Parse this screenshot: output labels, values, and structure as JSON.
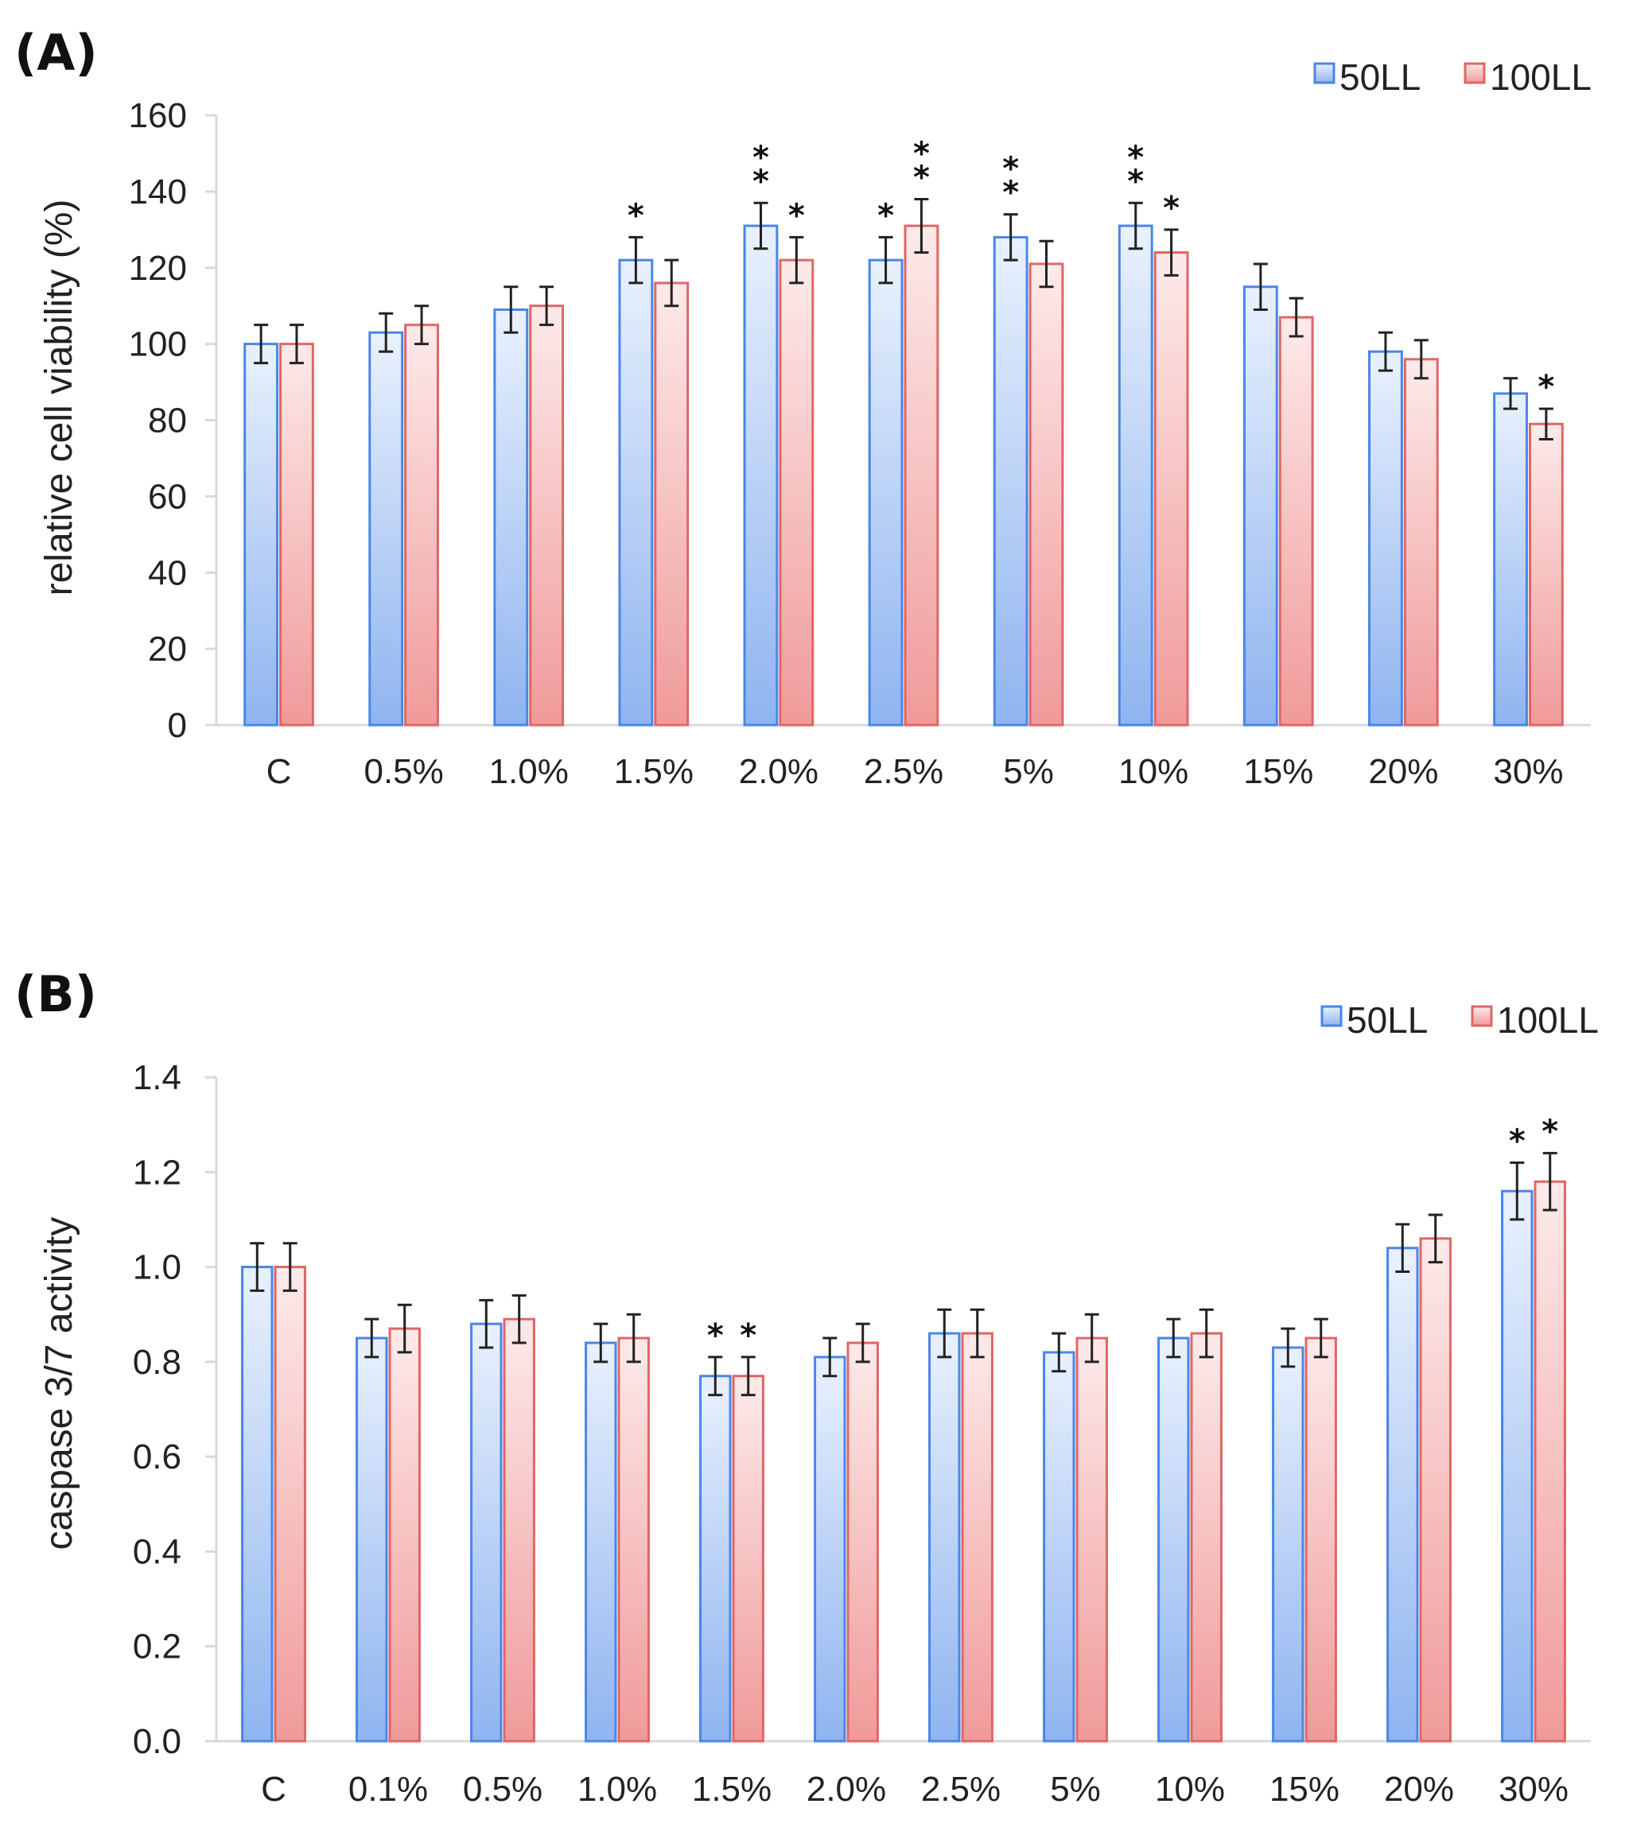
{
  "colors": {
    "series1": "#4a86e8",
    "series2": "#e06666"
  },
  "chart_data": [
    {
      "type": "bar",
      "panel_label": "(A)",
      "ylabel": "relative cell viability (%)",
      "ylim": [
        0,
        160
      ],
      "yticks": [
        0,
        20,
        40,
        60,
        80,
        100,
        120,
        140,
        160
      ],
      "categories": [
        "C",
        "0.5%",
        "1.0%",
        "1.5%",
        "2.0%",
        "2.5%",
        "5%",
        "10%",
        "15%",
        "20%",
        "30%"
      ],
      "legend": "top-right",
      "series": [
        {
          "name": "50LL",
          "values": [
            100,
            103,
            109,
            122,
            131,
            122,
            128,
            131,
            115,
            98,
            87
          ],
          "errors": [
            5,
            5,
            6,
            6,
            6,
            6,
            6,
            6,
            6,
            5,
            4
          ],
          "sig": [
            "",
            "",
            "",
            "*",
            "* *",
            "*",
            "* *",
            "* *",
            "",
            "",
            ""
          ]
        },
        {
          "name": "100LL",
          "values": [
            100,
            105,
            110,
            116,
            122,
            131,
            121,
            124,
            107,
            96,
            79
          ],
          "errors": [
            5,
            5,
            5,
            6,
            6,
            7,
            6,
            6,
            5,
            5,
            4
          ],
          "sig": [
            "",
            "",
            "",
            "",
            "*",
            "* *",
            "",
            "*",
            "",
            "",
            "*"
          ]
        }
      ]
    },
    {
      "type": "bar",
      "panel_label": "(B)",
      "ylabel": "caspase 3/7 activity",
      "ylim": [
        0,
        1.4
      ],
      "yticks": [
        "0.0",
        "0.2",
        "0.4",
        "0.6",
        "0.8",
        "1.0",
        "1.2",
        "1.4"
      ],
      "categories": [
        "C",
        "0.1%",
        "0.5%",
        "1.0%",
        "1.5%",
        "2.0%",
        "2.5%",
        "5%",
        "10%",
        "15%",
        "20%",
        "30%"
      ],
      "legend": "top-right",
      "series": [
        {
          "name": "50LL",
          "values": [
            1.0,
            0.85,
            0.88,
            0.84,
            0.77,
            0.81,
            0.86,
            0.82,
            0.85,
            0.83,
            1.04,
            1.16
          ],
          "errors": [
            0.05,
            0.04,
            0.05,
            0.04,
            0.04,
            0.04,
            0.05,
            0.04,
            0.04,
            0.04,
            0.05,
            0.06
          ],
          "sig": [
            "",
            "",
            "",
            "",
            "*",
            "",
            "",
            "",
            "",
            "",
            "",
            "*"
          ]
        },
        {
          "name": "100LL",
          "values": [
            1.0,
            0.87,
            0.89,
            0.85,
            0.77,
            0.84,
            0.86,
            0.85,
            0.86,
            0.85,
            1.06,
            1.18
          ],
          "errors": [
            0.05,
            0.05,
            0.05,
            0.05,
            0.04,
            0.04,
            0.05,
            0.05,
            0.05,
            0.04,
            0.05,
            0.06
          ],
          "sig": [
            "",
            "",
            "",
            "",
            "*",
            "",
            "",
            "",
            "",
            "",
            "",
            "*"
          ]
        }
      ]
    }
  ]
}
